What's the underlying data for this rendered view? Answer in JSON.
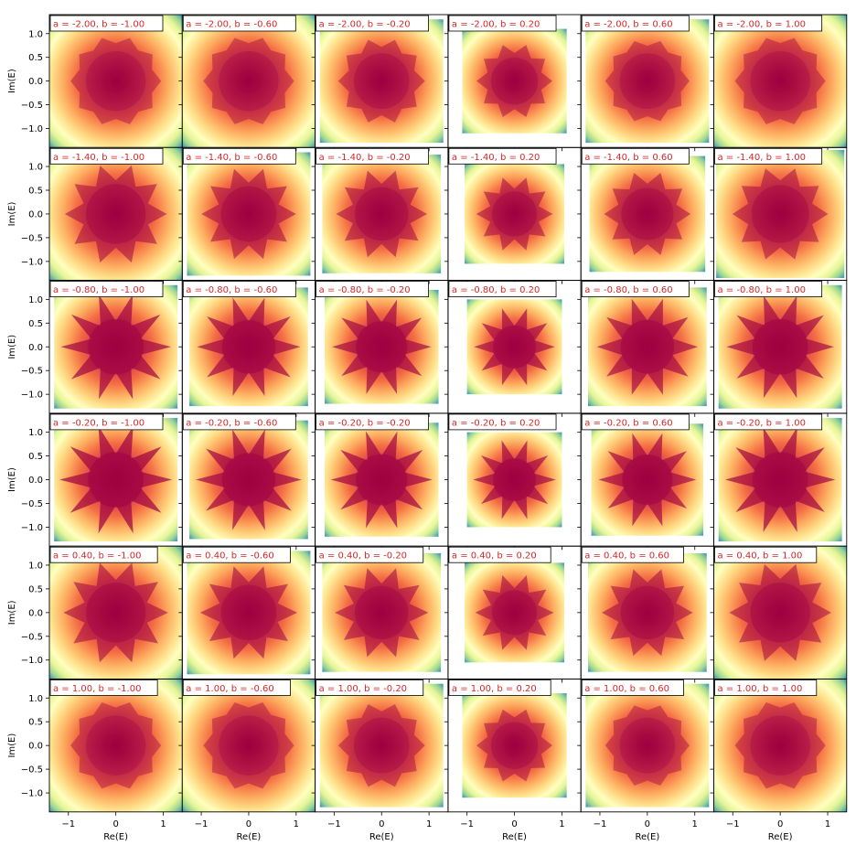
{
  "chart_data": {
    "type": "heatmap",
    "layout": {
      "rows": 6,
      "cols": 6
    },
    "xlabel": "Re(E)",
    "ylabel": "Im(E)",
    "xlim": [
      -1.4,
      1.4
    ],
    "ylim": [
      -1.4,
      1.4
    ],
    "xticks": [
      -1,
      0,
      1
    ],
    "yticks": [
      1.0,
      0.5,
      0.0,
      -0.5,
      -1.0
    ],
    "ytick_labels": [
      "1.0",
      "0.5",
      "0.0",
      "−0.5",
      "−1.0"
    ],
    "xtick_labels": [
      "−1",
      "0",
      "1"
    ],
    "colormap": "Spectral",
    "grid": false,
    "a_values": [
      -2.0,
      -1.4,
      -0.8,
      -0.2,
      0.4,
      1.0
    ],
    "b_values": [
      -1.0,
      -0.6,
      -0.2,
      0.2,
      0.6,
      1.0
    ],
    "panel_titles": [
      [
        "a = -2.00, b = -1.00",
        "a = -2.00, b = -0.60",
        "a = -2.00, b = -0.20",
        "a = -2.00, b = 0.20",
        "a = -2.00, b = 0.60",
        "a = -2.00, b = 1.00"
      ],
      [
        "a = -1.40, b = -1.00",
        "a = -1.40, b = -0.60",
        "a = -1.40, b = -0.20",
        "a = -1.40, b = 0.20",
        "a = -1.40, b = 0.60",
        "a = -1.40, b = 1.00"
      ],
      [
        "a = -0.80, b = -1.00",
        "a = -0.80, b = -0.60",
        "a = -0.80, b = -0.20",
        "a = -0.80, b = 0.20",
        "a = -0.80, b = 0.60",
        "a = -0.80, b = 1.00"
      ],
      [
        "a = -0.20, b = -1.00",
        "a = -0.20, b = -0.60",
        "a = -0.20, b = -0.20",
        "a = -0.20, b = 0.20",
        "a = -0.20, b = 0.60",
        "a = -0.20, b = 1.00"
      ],
      [
        "a = 0.40, b = -1.00",
        "a = 0.40, b = -0.60",
        "a = 0.40, b = -0.20",
        "a = 0.40, b = 0.20",
        "a = 0.40, b = 0.60",
        "a = 0.40, b = 1.00"
      ],
      [
        "a = 1.00, b = -1.00",
        "a = 1.00, b = -0.60",
        "a = 1.00, b = -0.20",
        "a = 1.00, b = 0.20",
        "a = 1.00, b = 0.60",
        "a = 1.00, b = 1.00"
      ]
    ],
    "spectrum_half_width": [
      [
        1.4,
        1.4,
        1.3,
        1.1,
        1.3,
        1.4
      ],
      [
        1.4,
        1.3,
        1.25,
        1.05,
        1.22,
        1.35
      ],
      [
        1.3,
        1.25,
        1.2,
        1.0,
        1.25,
        1.3
      ],
      [
        1.3,
        1.25,
        1.2,
        1.0,
        1.18,
        1.3
      ],
      [
        1.4,
        1.3,
        1.25,
        1.05,
        1.25,
        1.4
      ],
      [
        1.4,
        1.4,
        1.3,
        1.1,
        1.3,
        1.4
      ]
    ],
    "star_strength": [
      [
        0.15,
        0.15,
        0.2,
        0.25,
        0.15,
        0.15
      ],
      [
        0.35,
        0.35,
        0.35,
        0.35,
        0.3,
        0.3
      ],
      [
        0.65,
        0.6,
        0.6,
        0.55,
        0.55,
        0.6
      ],
      [
        0.7,
        0.65,
        0.65,
        0.6,
        0.6,
        0.65
      ],
      [
        0.4,
        0.4,
        0.4,
        0.4,
        0.35,
        0.35
      ],
      [
        0.15,
        0.15,
        0.2,
        0.25,
        0.15,
        0.15
      ]
    ],
    "colors": {
      "title_text": "#d62728",
      "title_box_border": "#000000",
      "title_box_fill": "#ffffff",
      "axes_edge": "#000000",
      "tick_text": "#000000"
    }
  }
}
